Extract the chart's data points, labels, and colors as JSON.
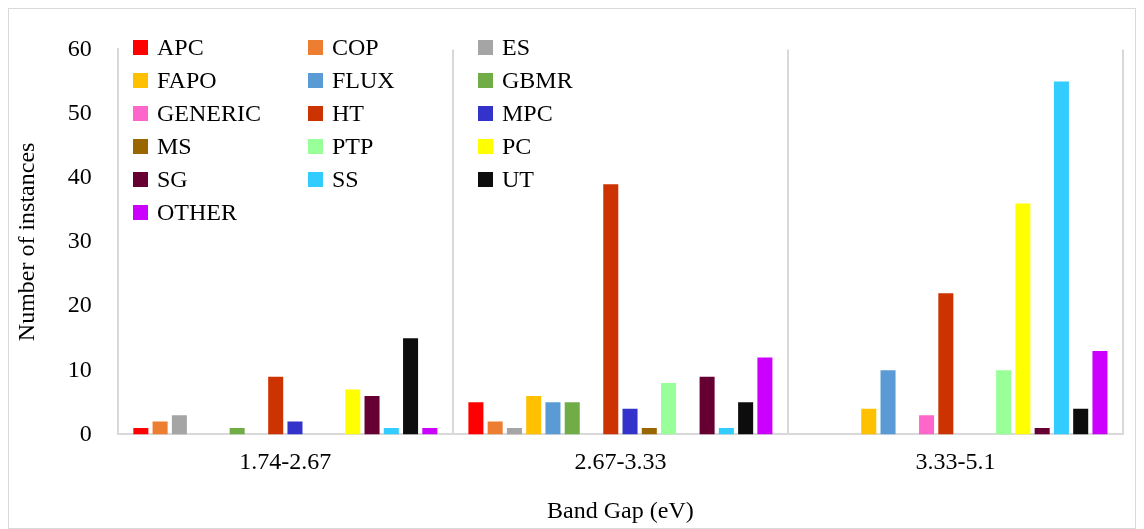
{
  "chart_data": {
    "type": "bar",
    "xlabel": "Band Gap (eV)",
    "ylabel": "Number of instances",
    "categories": [
      "1.74-2.67",
      "2.67-3.33",
      "3.33-5.1"
    ],
    "series": [
      {
        "name": "APC",
        "color": "#ff0000",
        "values": [
          1,
          5,
          0
        ]
      },
      {
        "name": "COP",
        "color": "#ed7d31",
        "values": [
          2,
          2,
          0
        ]
      },
      {
        "name": "ES",
        "color": "#a5a5a5",
        "values": [
          3,
          1,
          0
        ]
      },
      {
        "name": "FAPO",
        "color": "#ffc000",
        "values": [
          0,
          6,
          4
        ]
      },
      {
        "name": "FLUX",
        "color": "#5b9bd5",
        "values": [
          0,
          5,
          10
        ]
      },
      {
        "name": "GBMR",
        "color": "#70ad47",
        "values": [
          1,
          5,
          0
        ]
      },
      {
        "name": "GENERIC",
        "color": "#ff66cc",
        "values": [
          0,
          0,
          3
        ]
      },
      {
        "name": "HT",
        "color": "#cc3300",
        "values": [
          9,
          39,
          22
        ]
      },
      {
        "name": "MPC",
        "color": "#3333cc",
        "values": [
          2,
          4,
          0
        ]
      },
      {
        "name": "MS",
        "color": "#996600",
        "values": [
          0,
          1,
          0
        ]
      },
      {
        "name": "PTP",
        "color": "#99ff99",
        "values": [
          0,
          8,
          10
        ]
      },
      {
        "name": "PC",
        "color": "#ffff00",
        "values": [
          7,
          0,
          36
        ]
      },
      {
        "name": "SG",
        "color": "#660033",
        "values": [
          6,
          9,
          1
        ]
      },
      {
        "name": "SS",
        "color": "#33ccff",
        "values": [
          1,
          1,
          55
        ]
      },
      {
        "name": "UT",
        "color": "#0d0d0d",
        "values": [
          15,
          5,
          4
        ]
      },
      {
        "name": "OTHER",
        "color": "#cc00ff",
        "values": [
          1,
          12,
          13
        ]
      }
    ],
    "ylim": [
      0,
      60
    ],
    "yticks": [
      0,
      10,
      20,
      30,
      40,
      50,
      60
    ],
    "grid": "x",
    "legend": "top left"
  }
}
